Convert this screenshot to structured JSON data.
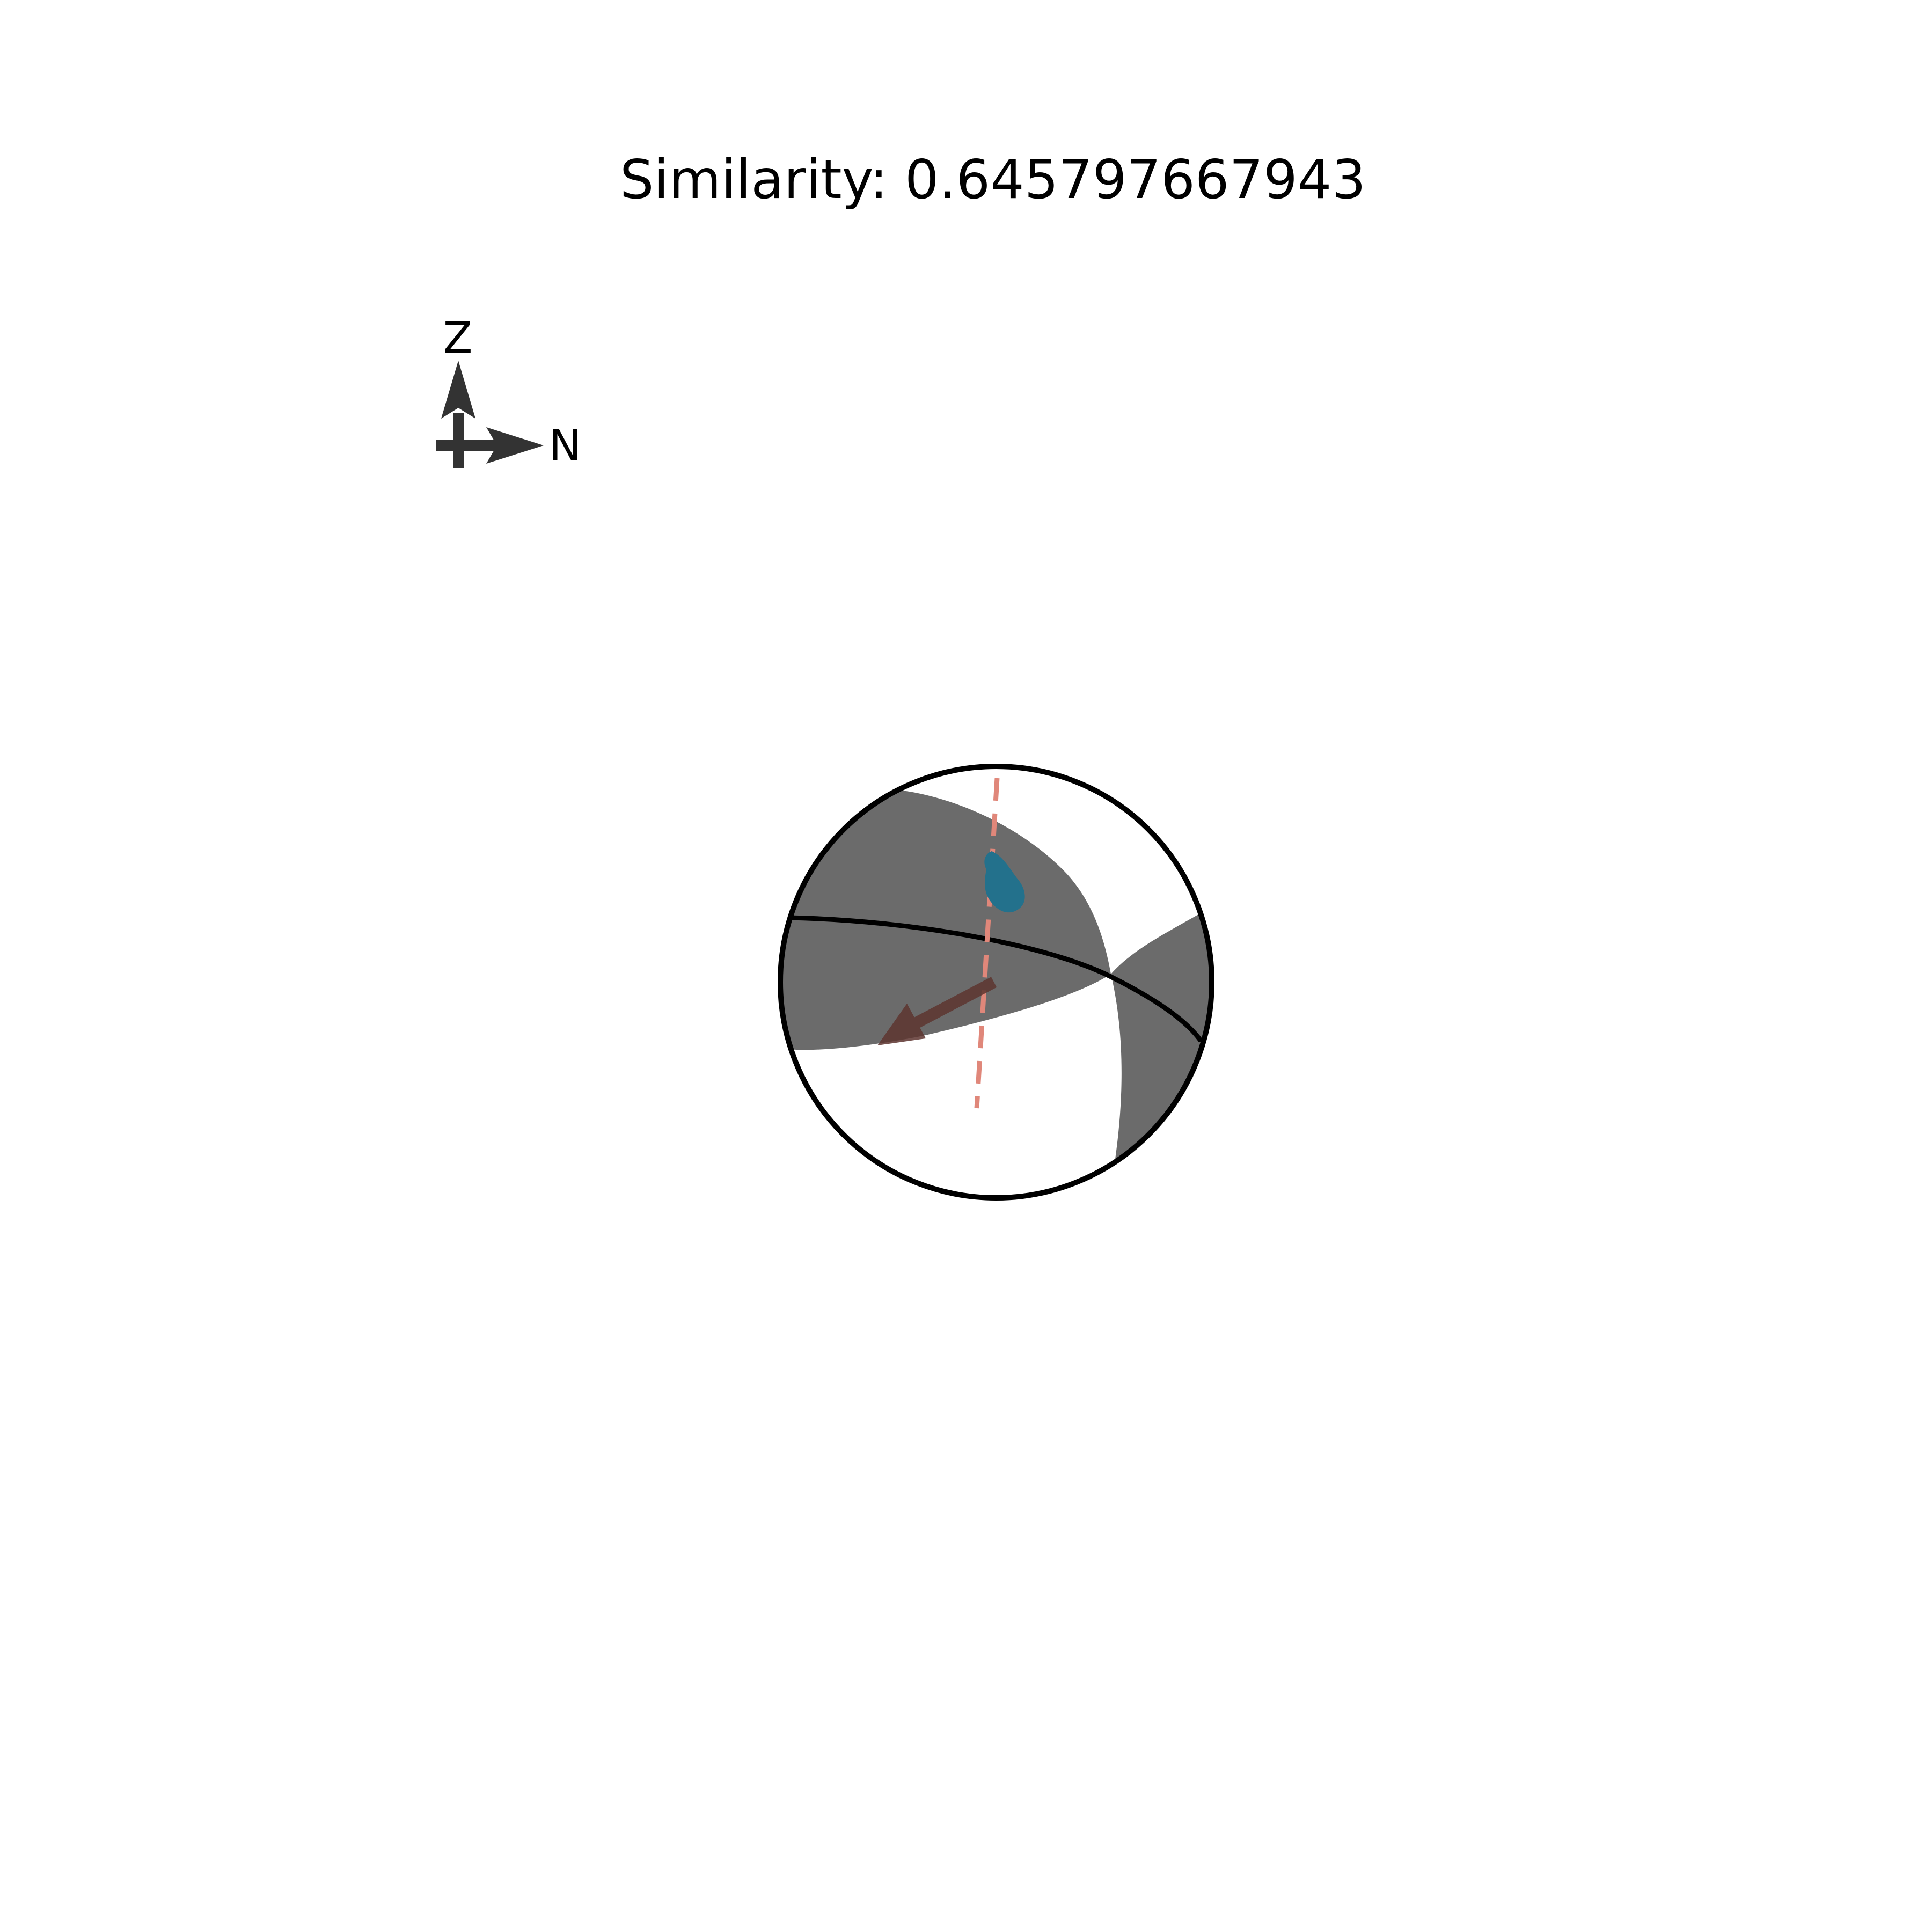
{
  "title": "Similarity: 0.645797667943",
  "orientation_axes": {
    "vertical_label": "Z",
    "horizontal_label": "N"
  },
  "colors": {
    "shaded_region": "#6b6b6b",
    "outline": "#000000",
    "pole_marker": "#23718c",
    "slip_arrow": "#5e3530",
    "dashed_trace": "#e0877a",
    "axis_arrows": "#333333"
  }
}
